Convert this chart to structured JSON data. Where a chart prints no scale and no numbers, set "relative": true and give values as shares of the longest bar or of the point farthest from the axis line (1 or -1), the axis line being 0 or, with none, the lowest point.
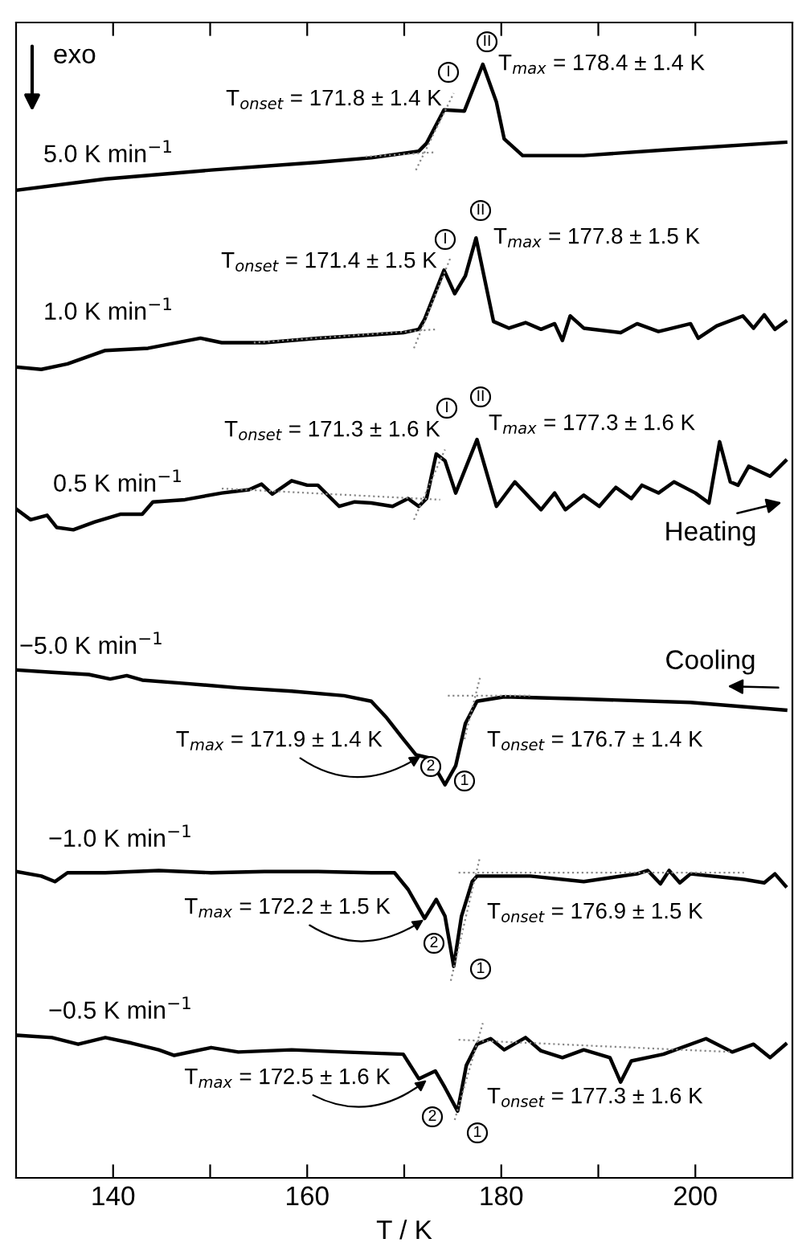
{
  "chart_data": {
    "type": "line",
    "relative": true,
    "xlabel": "T / K",
    "xlim": [
      130,
      210
    ],
    "xticks": [
      140,
      {
        "value": 150,
        "label": null
      },
      160,
      {
        "value": 170,
        "label": null
      },
      180,
      {
        "value": 190,
        "label": null
      },
      200
    ],
    "grid": false,
    "marker": "none",
    "series": [
      {
        "name": "5.0 K min$^{−1}$",
        "color": "#000000",
        "x": [
          130.1,
          139.2,
          150.1,
          161.1,
          166.6,
          171.5,
          172.3,
          174.1,
          176.2,
          178.1,
          179.5,
          180.3,
          182.2,
          188.5,
          196.7,
          209.3
        ],
        "values": [
          0.887,
          0.897,
          0.905,
          0.912,
          0.916,
          0.922,
          0.929,
          0.959,
          0.958,
          1.0,
          0.966,
          0.933,
          0.918,
          0.918,
          0.923,
          0.93
        ]
      },
      {
        "name": "1.0 K min$^{−1}$",
        "color": "#000000",
        "x": [
          130.1,
          132.6,
          135.3,
          139.2,
          143.6,
          149.0,
          151.2,
          155.6,
          161.1,
          166.6,
          169.9,
          171.5,
          172.1,
          174.1,
          175.2,
          176.3,
          177.4,
          179.2,
          180.8,
          182.5,
          184.1,
          185.5,
          186.3,
          187.1,
          188.5,
          192.3,
          194.0,
          196.2,
          199.5,
          200.3,
          202.2,
          204.9,
          206.0,
          207.1,
          208.2,
          209.3
        ],
        "values": [
          0.728,
          0.726,
          0.731,
          0.743,
          0.745,
          0.754,
          0.75,
          0.75,
          0.754,
          0.757,
          0.759,
          0.762,
          0.771,
          0.815,
          0.794,
          0.81,
          0.844,
          0.769,
          0.763,
          0.768,
          0.762,
          0.767,
          0.752,
          0.774,
          0.763,
          0.759,
          0.767,
          0.76,
          0.767,
          0.754,
          0.765,
          0.774,
          0.763,
          0.775,
          0.762,
          0.769
        ]
      },
      {
        "name": "0.5 K min$^{−1}$",
        "color": "#000000",
        "x": [
          130.1,
          131.5,
          133.2,
          134.2,
          135.9,
          138.1,
          140.8,
          143.0,
          144.1,
          147.4,
          151.2,
          154.0,
          155.3,
          156.4,
          158.4,
          160.0,
          161.1,
          163.3,
          164.9,
          166.6,
          168.8,
          170.4,
          171.5,
          172.3,
          173.3,
          174.2,
          175.3,
          177.5,
          179.5,
          181.4,
          184.1,
          185.5,
          186.6,
          188.5,
          190.1,
          191.8,
          193.4,
          194.5,
          196.2,
          197.8,
          200.0,
          201.4,
          202.5,
          203.6,
          204.4,
          205.5,
          207.7,
          209.3
        ],
        "values": [
          0.6,
          0.591,
          0.595,
          0.584,
          0.582,
          0.589,
          0.596,
          0.596,
          0.607,
          0.609,
          0.615,
          0.618,
          0.623,
          0.614,
          0.626,
          0.622,
          0.622,
          0.603,
          0.607,
          0.606,
          0.603,
          0.61,
          0.603,
          0.61,
          0.65,
          0.644,
          0.615,
          0.663,
          0.603,
          0.625,
          0.6,
          0.615,
          0.6,
          0.613,
          0.603,
          0.62,
          0.61,
          0.622,
          0.615,
          0.625,
          0.615,
          0.606,
          0.661,
          0.625,
          0.622,
          0.639,
          0.63,
          0.644
        ]
      },
      {
        "name": "−5.0 K min$^{−1}$",
        "color": "#000000",
        "x": [
          130.1,
          133.7,
          137.5,
          139.7,
          141.4,
          143.0,
          147.4,
          152.9,
          158.4,
          163.8,
          166.6,
          168.2,
          169.9,
          171.2,
          172.6,
          174.2,
          175.3,
          176.3,
          177.5,
          180.3,
          188.5,
          199.5,
          209.3
        ],
        "values": [
          0.456,
          0.454,
          0.452,
          0.448,
          0.451,
          0.447,
          0.444,
          0.44,
          0.437,
          0.433,
          0.428,
          0.413,
          0.394,
          0.38,
          0.377,
          0.353,
          0.37,
          0.408,
          0.428,
          0.432,
          0.43,
          0.427,
          0.42
        ]
      },
      {
        "name": "−1.0 K min$^{−1}$",
        "color": "#000000",
        "x": [
          130.1,
          132.6,
          134.0,
          135.3,
          139.2,
          144.7,
          150.1,
          155.6,
          161.1,
          166.6,
          169.0,
          170.4,
          172.1,
          173.3,
          174.2,
          175.1,
          175.9,
          177.0,
          177.5,
          183.0,
          188.5,
          194.0,
          195.1,
          196.4,
          197.3,
          198.4,
          199.5,
          205.0,
          207.1,
          208.2,
          209.3
        ],
        "values": [
          0.275,
          0.271,
          0.266,
          0.274,
          0.274,
          0.276,
          0.274,
          0.275,
          0.275,
          0.274,
          0.274,
          0.259,
          0.233,
          0.25,
          0.235,
          0.19,
          0.235,
          0.266,
          0.271,
          0.271,
          0.266,
          0.273,
          0.276,
          0.264,
          0.276,
          0.265,
          0.273,
          0.268,
          0.265,
          0.273,
          0.262
        ]
      },
      {
        "name": "−0.5 K min$^{−1}$",
        "color": "#000000",
        "x": [
          130.1,
          133.7,
          136.4,
          139.2,
          141.9,
          144.7,
          146.3,
          150.1,
          152.9,
          158.4,
          163.8,
          169.9,
          171.5,
          173.2,
          174.2,
          175.5,
          176.4,
          177.5,
          178.9,
          180.3,
          182.5,
          184.1,
          186.3,
          188.5,
          191.2,
          192.3,
          193.4,
          196.7,
          201.1,
          203.8,
          206.0,
          207.7,
          209.3
        ],
        "values": [
          0.128,
          0.126,
          0.12,
          0.126,
          0.121,
          0.115,
          0.11,
          0.117,
          0.113,
          0.115,
          0.113,
          0.111,
          0.089,
          0.096,
          0.081,
          0.06,
          0.101,
          0.12,
          0.125,
          0.115,
          0.126,
          0.114,
          0.108,
          0.115,
          0.108,
          0.086,
          0.105,
          0.111,
          0.125,
          0.113,
          0.12,
          0.108,
          0.12
        ]
      },
      {
        "color": "#888888",
        "line_style": "dotted",
        "x": [
          166.0,
          173.2
        ],
        "values": [
          0.917,
          0.921
        ]
      },
      {
        "color": "#888888",
        "line_style": "dotted",
        "x": [
          171.2,
          175.1
        ],
        "values": [
          0.905,
          0.974
        ]
      },
      {
        "color": "#888888",
        "line_style": "dotted",
        "x": [
          154.5,
          173.4
        ],
        "values": [
          0.75,
          0.762
        ]
      },
      {
        "color": "#888888",
        "line_style": "dotted",
        "x": [
          171.0,
          174.8
        ],
        "values": [
          0.745,
          0.827
        ]
      },
      {
        "color": "#888888",
        "line_style": "dotted",
        "x": [
          151.2,
          173.7
        ],
        "values": [
          0.619,
          0.609
        ]
      },
      {
        "color": "#888888",
        "line_style": "dotted",
        "x": [
          171.0,
          174.2
        ],
        "values": [
          0.591,
          0.654
        ]
      },
      {
        "color": "#888888",
        "line_style": "dotted",
        "x": [
          174.5,
          183.0
        ],
        "values": [
          0.433,
          0.433
        ]
      },
      {
        "color": "#888888",
        "line_style": "dotted",
        "x": [
          176.2,
          177.8
        ],
        "values": [
          0.394,
          0.449
        ]
      },
      {
        "color": "#888888",
        "line_style": "dotted",
        "x": [
          175.6,
          205.0
        ],
        "values": [
          0.274,
          0.274
        ]
      },
      {
        "color": "#888888",
        "line_style": "dotted",
        "x": [
          174.8,
          177.8
        ],
        "values": [
          0.177,
          0.288
        ]
      },
      {
        "color": "#888888",
        "line_style": "dotted",
        "x": [
          175.6,
          203.8
        ],
        "values": [
          0.124,
          0.113
        ]
      },
      {
        "color": "#888888",
        "line_style": "dotted",
        "x": [
          175.2,
          178.1
        ],
        "values": [
          0.052,
          0.139
        ]
      }
    ],
    "annotations": [
      {
        "text": "T$_{onset}$ = 171.8 ± 1.4 K",
        "x": 171.8,
        "y": 0.92
      },
      {
        "text": "T$_{max}$ = 178.4 ± 1.4 K",
        "x": 178.4,
        "y": 1.0
      },
      {
        "text": "T$_{onset}$ = 171.4 ± 1.5 K",
        "x": 171.4,
        "y": 0.757
      },
      {
        "text": "T$_{max}$ = 177.8 ± 1.5 K",
        "x": 177.8,
        "y": 0.844
      },
      {
        "text": "T$_{onset}$ = 171.3 ± 1.6 K",
        "x": 171.3,
        "y": 0.61
      },
      {
        "text": "T$_{max}$ = 177.3 ± 1.6 K",
        "x": 177.3,
        "y": 0.663
      },
      {
        "text": "T$_{max}$ = 171.9 ± 1.4 K",
        "x": 171.9,
        "y": 0.38
      },
      {
        "text": "T$_{onset}$ = 176.7 ± 1.4 K",
        "x": 176.7,
        "y": 0.433
      },
      {
        "text": "T$_{max}$ = 172.2 ± 1.5 K",
        "x": 172.2,
        "y": 0.233
      },
      {
        "text": "T$_{onset}$ = 176.9 ± 1.5 K",
        "x": 176.9,
        "y": 0.274
      },
      {
        "text": "T$_{max}$ = 172.5 ± 1.6 K",
        "x": 172.5,
        "y": 0.089
      },
      {
        "text": "T$_{onset}$ = 177.3 ± 1.6 K",
        "x": 177.3,
        "y": 0.124
      },
      {
        "text": "I",
        "x": 174.1,
        "y": 0.959
      },
      {
        "text": "II",
        "x": 178.1,
        "y": 1.0
      },
      {
        "text": "I",
        "x": 174.1,
        "y": 0.815
      },
      {
        "text": "II",
        "x": 177.4,
        "y": 0.844
      },
      {
        "text": "I",
        "x": 173.3,
        "y": 0.65
      },
      {
        "text": "II",
        "x": 177.5,
        "y": 0.663
      },
      {
        "text": "2",
        "x": 171.2,
        "y": 0.38
      },
      {
        "text": "1",
        "x": 174.2,
        "y": 0.353
      },
      {
        "text": "2",
        "x": 172.1,
        "y": 0.233
      },
      {
        "text": "1",
        "x": 175.1,
        "y": 0.19
      },
      {
        "text": "2",
        "x": 171.5,
        "y": 0.089
      },
      {
        "text": "1",
        "x": 175.5,
        "y": 0.06
      },
      "exo",
      "Heating",
      "Cooling"
    ]
  }
}
